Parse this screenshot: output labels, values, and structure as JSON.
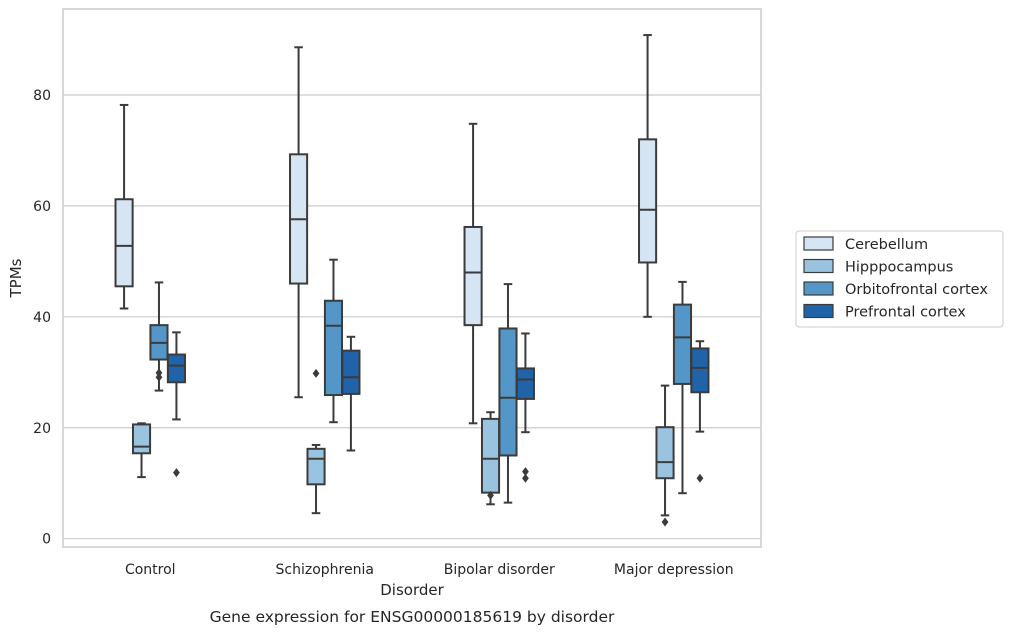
{
  "chart_data": {
    "type": "box",
    "title": "",
    "caption": "Gene expression for ENSG00000185619 by disorder",
    "xlabel": "Disorder",
    "ylabel": "TPMs",
    "ylim": [
      -1.5,
      95.5
    ],
    "yticks": [
      0,
      20,
      40,
      60,
      80
    ],
    "grid": "horizontal",
    "legend_position": "right",
    "categories": [
      "Control",
      "Schizophrenia",
      "Bipolar disorder",
      "Major depression"
    ],
    "series": [
      {
        "name": "Cerebellum",
        "color": "#d6e5f3",
        "boxes": [
          {
            "whisker_low": 41.5,
            "q1": 45.5,
            "median": 52.8,
            "q3": 61.2,
            "whisker_high": 78.2,
            "outliers": []
          },
          {
            "whisker_low": 25.5,
            "q1": 46.0,
            "median": 57.6,
            "q3": 69.3,
            "whisker_high": 88.6,
            "outliers": []
          },
          {
            "whisker_low": 20.8,
            "q1": 38.5,
            "median": 48.0,
            "q3": 56.2,
            "whisker_high": 74.8,
            "outliers": []
          },
          {
            "whisker_low": 40.0,
            "q1": 49.8,
            "median": 59.3,
            "q3": 72.0,
            "whisker_high": 90.8,
            "outliers": []
          }
        ]
      },
      {
        "name": "Hipppocampus",
        "color": "#9ac3df",
        "boxes": [
          {
            "whisker_low": 11.1,
            "q1": 15.4,
            "median": 16.6,
            "q3": 20.6,
            "whisker_high": 20.8,
            "outliers": []
          },
          {
            "whisker_low": 4.6,
            "q1": 9.8,
            "median": 14.4,
            "q3": 16.2,
            "whisker_high": 16.9,
            "outliers": [
              29.8
            ]
          },
          {
            "whisker_low": 6.2,
            "q1": 8.3,
            "median": 14.4,
            "q3": 21.6,
            "whisker_high": 22.8,
            "outliers": [
              7.8
            ]
          },
          {
            "whisker_low": 4.2,
            "q1": 10.9,
            "median": 13.8,
            "q3": 20.1,
            "whisker_high": 27.6,
            "outliers": [
              3.0
            ]
          }
        ]
      },
      {
        "name": "Orbitofrontal cortex",
        "color": "#5496c8",
        "boxes": [
          {
            "whisker_low": 26.7,
            "q1": 32.3,
            "median": 35.3,
            "q3": 38.5,
            "whisker_high": 46.2,
            "outliers": [
              29.1,
              29.9
            ]
          },
          {
            "whisker_low": 21.0,
            "q1": 25.9,
            "median": 38.4,
            "q3": 42.9,
            "whisker_high": 50.3,
            "outliers": []
          },
          {
            "whisker_low": 6.5,
            "q1": 15.0,
            "median": 25.4,
            "q3": 37.9,
            "whisker_high": 45.9,
            "outliers": []
          },
          {
            "whisker_low": 8.2,
            "q1": 27.9,
            "median": 36.3,
            "q3": 42.2,
            "whisker_high": 46.3,
            "outliers": []
          }
        ]
      },
      {
        "name": "Prefrontal cortex",
        "color": "#2163a8",
        "boxes": [
          {
            "whisker_low": 21.5,
            "q1": 28.2,
            "median": 31.2,
            "q3": 33.2,
            "whisker_high": 37.2,
            "outliers": [
              11.9
            ]
          },
          {
            "whisker_low": 15.9,
            "q1": 26.1,
            "median": 29.1,
            "q3": 33.9,
            "whisker_high": 36.4,
            "outliers": []
          },
          {
            "whisker_low": 19.2,
            "q1": 25.2,
            "median": 28.7,
            "q3": 30.7,
            "whisker_high": 37.0,
            "outliers": [
              10.9,
              12.1
            ]
          },
          {
            "whisker_low": 19.3,
            "q1": 26.4,
            "median": 30.8,
            "q3": 34.3,
            "whisker_high": 35.6,
            "outliers": [
              10.9
            ]
          }
        ]
      }
    ]
  }
}
